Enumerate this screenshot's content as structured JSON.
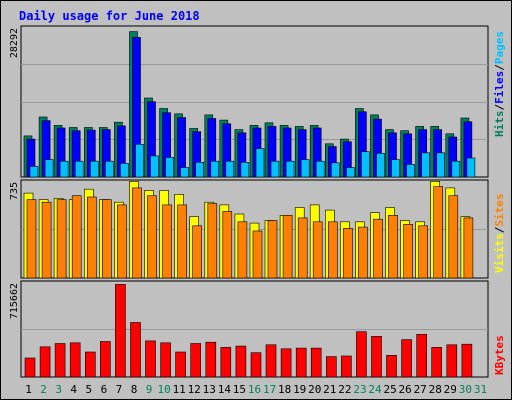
{
  "chart_data": {
    "title": "Daily usage for June 2018",
    "type": "bar",
    "colors": {
      "hits": "#00805c",
      "files": "#0000ff",
      "pages": "#00c0ff",
      "visits": "#ffff00",
      "sites": "#ff8000",
      "kbytes": "#ff0000",
      "weekday_label": "#000000",
      "weekend_label": "#00805c",
      "grid": "#999999",
      "background": "#c0c0c0"
    },
    "x": [
      "1",
      "2",
      "3",
      "4",
      "5",
      "6",
      "7",
      "8",
      "9",
      "10",
      "11",
      "12",
      "13",
      "14",
      "15",
      "16",
      "17",
      "18",
      "19",
      "20",
      "21",
      "22",
      "23",
      "24",
      "25",
      "26",
      "27",
      "28",
      "29",
      "30",
      "31"
    ],
    "weekend_days": [
      "2",
      "3",
      "9",
      "10",
      "16",
      "17",
      "23",
      "24",
      "30",
      "31"
    ],
    "panels": [
      {
        "id": "hits-files-pages",
        "max_label": "28292",
        "ylim": [
          0,
          28292
        ],
        "legend": [
          {
            "text": "Hits",
            "color": "#00805c"
          },
          {
            "text": "Files",
            "color": "#0000ff"
          },
          {
            "text": "Pages",
            "color": "#00c0ff"
          }
        ],
        "series": [
          {
            "name": "Hits",
            "color": "#00805c",
            "values": [
              7800,
              11400,
              9800,
              9400,
              9400,
              9400,
              10400,
              27600,
              15000,
              13000,
              12000,
              9200,
              11800,
              10800,
              9000,
              9800,
              10300,
              9800,
              9600,
              9800,
              6300,
              7200,
              13000,
              11800,
              9000,
              8800,
              9600,
              9600,
              8200,
              11200,
              null
            ]
          },
          {
            "name": "Files",
            "color": "#0000ff",
            "values": [
              7200,
              10700,
              9300,
              8800,
              8900,
              9000,
              9700,
              26500,
              14300,
              12200,
              11300,
              8600,
              11100,
              10100,
              8400,
              9300,
              9600,
              9300,
              9000,
              9300,
              5800,
              6700,
              12400,
              11000,
              8400,
              8200,
              9000,
              9000,
              7600,
              10500,
              null
            ]
          },
          {
            "name": "Pages",
            "color": "#00c0ff",
            "values": [
              2000,
              3300,
              3000,
              3000,
              3000,
              3000,
              2600,
              6200,
              4000,
              3700,
              1800,
              2800,
              3000,
              3000,
              2800,
              5400,
              3000,
              3000,
              3300,
              3000,
              2700,
              1800,
              4800,
              4500,
              3300,
              2400,
              4600,
              4600,
              3000,
              3600,
              null
            ]
          }
        ]
      },
      {
        "id": "visits-sites",
        "max_label": "735",
        "ylim": [
          0,
          735
        ],
        "legend": [
          {
            "text": "Visits",
            "color": "#ffff00"
          },
          {
            "text": "Sites",
            "color": "#ff8000"
          }
        ],
        "series": [
          {
            "name": "Visits",
            "color": "#ffff00",
            "values": [
              650,
              600,
              610,
              600,
              680,
              600,
              580,
              740,
              670,
              670,
              640,
              470,
              580,
              560,
              490,
              420,
              440,
              480,
              540,
              560,
              520,
              430,
              430,
              500,
              540,
              440,
              430,
              740,
              690,
              470,
              null
            ]
          },
          {
            "name": "Sites",
            "color": "#ff8000",
            "values": [
              600,
              580,
              600,
              630,
              620,
              600,
              560,
              690,
              630,
              560,
              560,
              400,
              570,
              510,
              430,
              360,
              440,
              480,
              460,
              430,
              430,
              380,
              390,
              450,
              480,
              410,
              400,
              700,
              630,
              460,
              null
            ]
          }
        ]
      },
      {
        "id": "kbytes",
        "max_label": "715662",
        "ylim": [
          0,
          715662
        ],
        "legend": [
          {
            "text": "KBytes",
            "color": "#ff0000"
          }
        ],
        "series": [
          {
            "name": "KBytes",
            "color": "#ff0000",
            "values": [
              145000,
              230000,
              255000,
              260000,
              190000,
              270000,
              705000,
              415000,
              275000,
              260000,
              190000,
              255000,
              265000,
              225000,
              235000,
              185000,
              245000,
              215000,
              220000,
              220000,
              155000,
              160000,
              345000,
              310000,
              165000,
              285000,
              325000,
              225000,
              245000,
              250000,
              null
            ]
          }
        ]
      }
    ]
  }
}
